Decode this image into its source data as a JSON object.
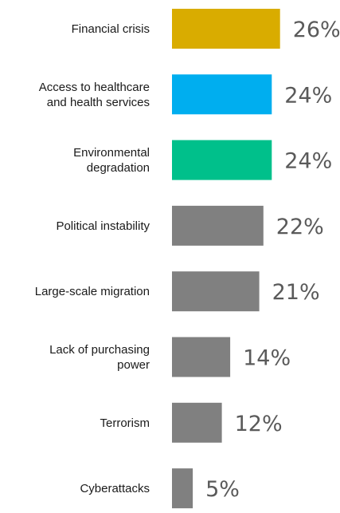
{
  "chart_data": {
    "type": "bar",
    "orientation": "horizontal",
    "title": "",
    "xlabel": "",
    "ylabel": "",
    "xlim": [
      0,
      30
    ],
    "grid": false,
    "legend": "none",
    "categories": [
      [
        "Financial crisis"
      ],
      [
        "Access to healthcare",
        "and health services"
      ],
      [
        "Environmental",
        "degradation"
      ],
      [
        "Political instability"
      ],
      [
        "Large-scale migration"
      ],
      [
        "Lack of purchasing",
        "power"
      ],
      [
        "Terrorism"
      ],
      [
        "Cyberattacks"
      ]
    ],
    "values": [
      26,
      24,
      24,
      22,
      21,
      14,
      12,
      5
    ],
    "value_labels": [
      "26%",
      "24%",
      "24%",
      "22%",
      "21%",
      "14%",
      "12%",
      "5%"
    ],
    "colors": [
      "#d9ac00",
      "#00aeef",
      "#00c08b",
      "#808080",
      "#808080",
      "#808080",
      "#808080",
      "#808080"
    ]
  }
}
